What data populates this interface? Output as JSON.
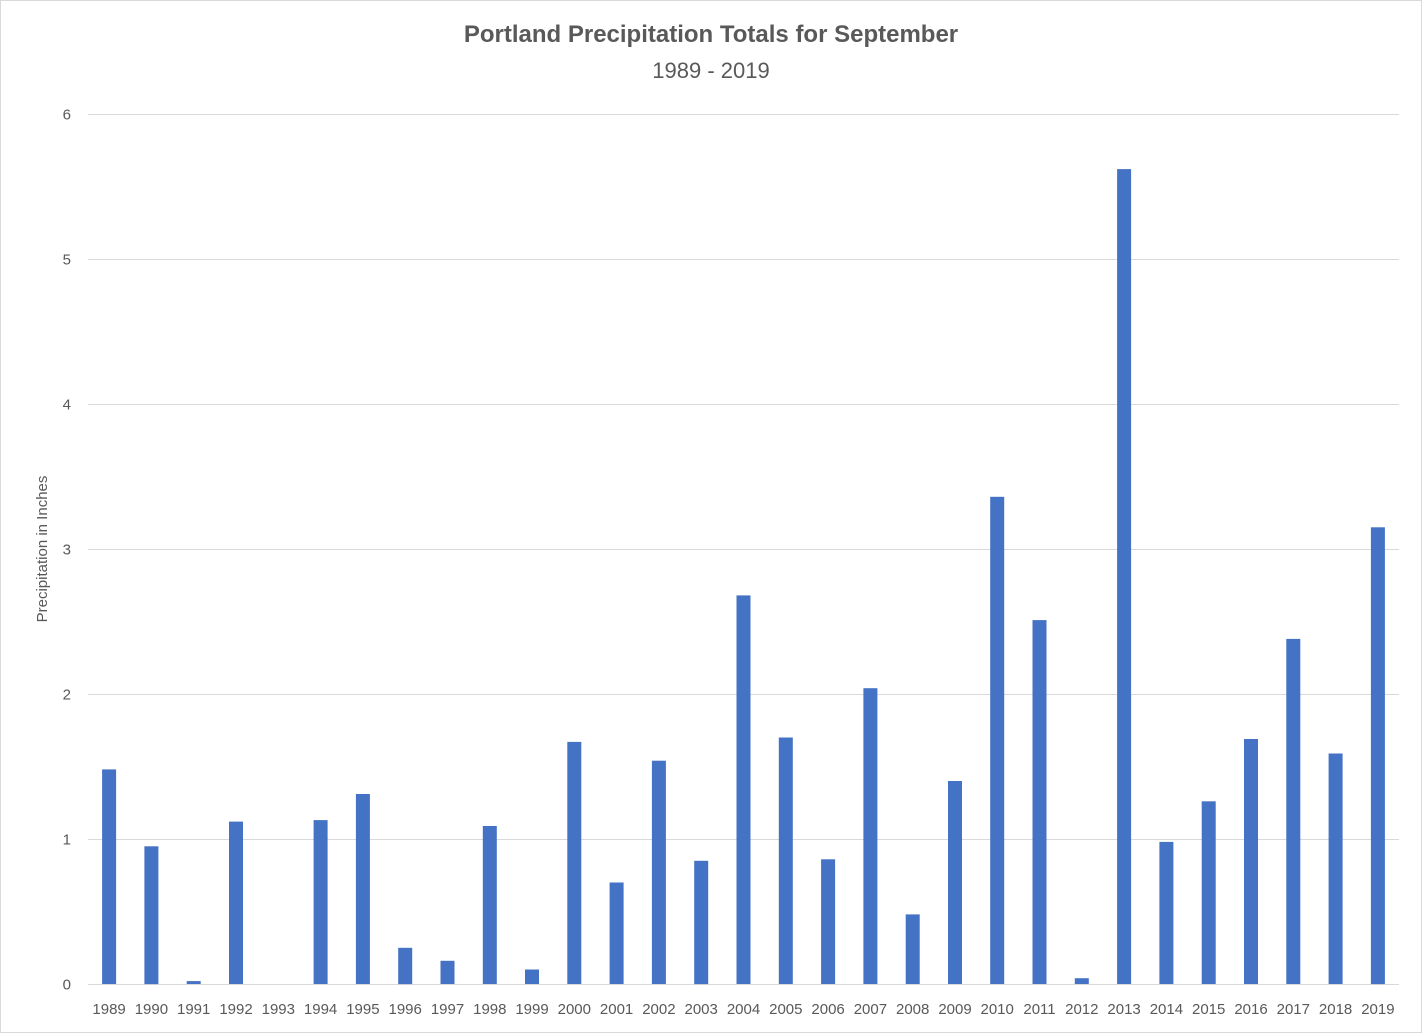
{
  "chart_data": {
    "type": "bar",
    "title": "Portland Precipitation Totals for September",
    "subtitle": "1989 - 2019",
    "ylabel": "Precipitation in Inches",
    "xlabel": "",
    "ylim": [
      0,
      6
    ],
    "yticks": [
      0,
      1,
      2,
      3,
      4,
      5,
      6
    ],
    "grid": true,
    "legend": "none",
    "bar_color": "#4472c4",
    "categories": [
      "1989",
      "1990",
      "1991",
      "1992",
      "1993",
      "1994",
      "1995",
      "1996",
      "1997",
      "1998",
      "1999",
      "2000",
      "2001",
      "2002",
      "2003",
      "2004",
      "2005",
      "2006",
      "2007",
      "2008",
      "2009",
      "2010",
      "2011",
      "2012",
      "2013",
      "2014",
      "2015",
      "2016",
      "2017",
      "2018",
      "2019"
    ],
    "values": [
      1.48,
      0.95,
      0.02,
      1.12,
      0,
      1.13,
      1.31,
      0.25,
      0.16,
      1.09,
      0.1,
      1.67,
      0.7,
      1.54,
      0.85,
      2.68,
      1.7,
      0.86,
      2.04,
      0.48,
      1.4,
      3.36,
      2.51,
      0.04,
      5.62,
      0.98,
      1.26,
      1.69,
      2.38,
      1.59,
      3.15
    ]
  }
}
